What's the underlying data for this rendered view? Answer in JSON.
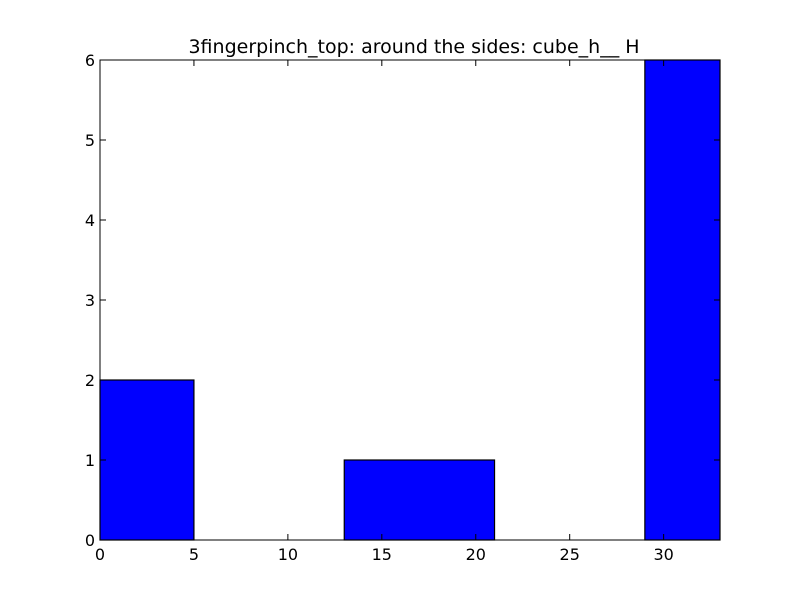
{
  "chart_data": {
    "type": "bar",
    "title": "3fingerpinch_top: around the sides: cube_h__ H",
    "xlabel": "",
    "ylabel": "",
    "xlim": [
      0,
      33
    ],
    "ylim": [
      0,
      6
    ],
    "x_ticks": [
      0,
      5,
      10,
      15,
      20,
      25,
      30
    ],
    "y_ticks": [
      0,
      1,
      2,
      3,
      4,
      5,
      6
    ],
    "bars": [
      {
        "x_start": 0,
        "x_end": 5,
        "value": 2
      },
      {
        "x_start": 13,
        "x_end": 21,
        "value": 1
      },
      {
        "x_start": 29,
        "x_end": 33,
        "value": 6
      }
    ],
    "grid": false,
    "bar_color": "#0000ff",
    "edge_color": "#000000"
  }
}
